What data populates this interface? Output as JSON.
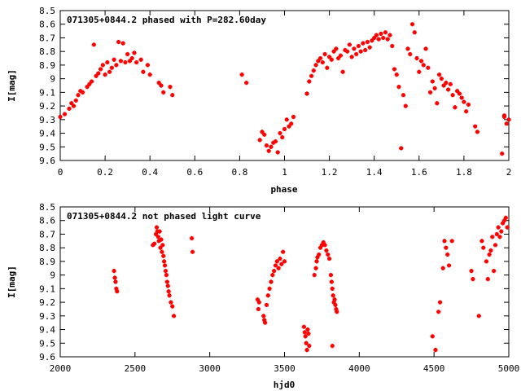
{
  "chart_data": [
    {
      "type": "scatter",
      "title": "071305+0844.2 phased with P=282.60day",
      "xlabel": "phase",
      "ylabel": "I[mag]",
      "xlim": [
        0,
        2
      ],
      "ylim": [
        9.6,
        8.5
      ],
      "y_inverted": true,
      "grid": false,
      "marker_color": "#ff0000",
      "xticks": [
        "0",
        "0.2",
        "0.4",
        "0.6",
        "0.8",
        "1",
        "1.2",
        "1.4",
        "1.6",
        "1.8",
        "2"
      ],
      "yticks": [
        "8.5",
        "8.6",
        "8.7",
        "8.8",
        "8.9",
        "9",
        "9.1",
        "9.2",
        "9.3",
        "9.4",
        "9.5",
        "9.6"
      ],
      "points": [
        [
          0.0,
          9.28
        ],
        [
          0.02,
          9.26
        ],
        [
          0.04,
          9.22
        ],
        [
          0.05,
          9.18
        ],
        [
          0.06,
          9.2
        ],
        [
          0.07,
          9.16
        ],
        [
          0.08,
          9.12
        ],
        [
          0.09,
          9.09
        ],
        [
          0.1,
          9.1
        ],
        [
          0.12,
          9.06
        ],
        [
          0.13,
          9.04
        ],
        [
          0.14,
          9.02
        ],
        [
          0.15,
          8.75
        ],
        [
          0.16,
          8.98
        ],
        [
          0.17,
          8.96
        ],
        [
          0.18,
          8.93
        ],
        [
          0.19,
          8.9
        ],
        [
          0.2,
          8.97
        ],
        [
          0.21,
          8.88
        ],
        [
          0.22,
          8.95
        ],
        [
          0.23,
          8.92
        ],
        [
          0.24,
          8.86
        ],
        [
          0.25,
          8.9
        ],
        [
          0.26,
          8.73
        ],
        [
          0.27,
          8.87
        ],
        [
          0.28,
          8.74
        ],
        [
          0.29,
          8.88
        ],
        [
          0.3,
          8.82
        ],
        [
          0.31,
          8.87
        ],
        [
          0.32,
          8.85
        ],
        [
          0.33,
          8.81
        ],
        [
          0.34,
          8.88
        ],
        [
          0.36,
          8.86
        ],
        [
          0.37,
          8.95
        ],
        [
          0.39,
          8.9
        ],
        [
          0.4,
          8.97
        ],
        [
          0.44,
          9.03
        ],
        [
          0.45,
          9.05
        ],
        [
          0.46,
          9.1
        ],
        [
          0.49,
          9.06
        ],
        [
          0.5,
          9.12
        ],
        [
          0.81,
          8.97
        ],
        [
          0.83,
          9.03
        ],
        [
          0.89,
          9.45
        ],
        [
          0.9,
          9.39
        ],
        [
          0.91,
          9.41
        ],
        [
          0.92,
          9.49
        ],
        [
          0.93,
          9.53
        ],
        [
          0.94,
          9.5
        ],
        [
          0.95,
          9.47
        ],
        [
          0.96,
          9.46
        ],
        [
          0.97,
          9.54
        ],
        [
          0.98,
          9.4
        ],
        [
          0.99,
          9.43
        ],
        [
          1.0,
          9.37
        ],
        [
          1.01,
          9.3
        ],
        [
          1.02,
          9.35
        ],
        [
          1.03,
          9.33
        ],
        [
          1.04,
          9.28
        ],
        [
          1.1,
          9.11
        ],
        [
          1.11,
          9.02
        ],
        [
          1.12,
          8.98
        ],
        [
          1.13,
          8.94
        ],
        [
          1.14,
          8.9
        ],
        [
          1.15,
          8.87
        ],
        [
          1.16,
          8.85
        ],
        [
          1.17,
          8.88
        ],
        [
          1.18,
          8.82
        ],
        [
          1.19,
          8.92
        ],
        [
          1.2,
          8.84
        ],
        [
          1.21,
          8.86
        ],
        [
          1.22,
          8.8
        ],
        [
          1.23,
          8.78
        ],
        [
          1.24,
          8.85
        ],
        [
          1.25,
          8.83
        ],
        [
          1.26,
          8.95
        ],
        [
          1.27,
          8.79
        ],
        [
          1.28,
          8.8
        ],
        [
          1.29,
          8.75
        ],
        [
          1.3,
          8.84
        ],
        [
          1.31,
          8.78
        ],
        [
          1.32,
          8.82
        ],
        [
          1.33,
          8.76
        ],
        [
          1.34,
          8.8
        ],
        [
          1.35,
          8.74
        ],
        [
          1.36,
          8.79
        ],
        [
          1.37,
          8.73
        ],
        [
          1.38,
          8.77
        ],
        [
          1.39,
          8.72
        ],
        [
          1.4,
          8.7
        ],
        [
          1.41,
          8.68
        ],
        [
          1.42,
          8.71
        ],
        [
          1.43,
          8.67
        ],
        [
          1.44,
          8.7
        ],
        [
          1.45,
          8.66
        ],
        [
          1.46,
          8.71
        ],
        [
          1.47,
          8.68
        ],
        [
          1.48,
          8.76
        ],
        [
          1.49,
          8.93
        ],
        [
          1.5,
          8.97
        ],
        [
          1.51,
          9.06
        ],
        [
          1.52,
          9.51
        ],
        [
          1.53,
          9.12
        ],
        [
          1.54,
          9.2
        ],
        [
          1.55,
          8.78
        ],
        [
          1.56,
          8.82
        ],
        [
          1.57,
          8.6
        ],
        [
          1.58,
          8.66
        ],
        [
          1.59,
          8.85
        ],
        [
          1.6,
          8.95
        ],
        [
          1.61,
          8.87
        ],
        [
          1.62,
          8.9
        ],
        [
          1.63,
          8.78
        ],
        [
          1.64,
          8.92
        ],
        [
          1.65,
          9.1
        ],
        [
          1.66,
          9.02
        ],
        [
          1.67,
          9.07
        ],
        [
          1.68,
          9.18
        ],
        [
          1.69,
          8.97
        ],
        [
          1.7,
          9.0
        ],
        [
          1.71,
          9.05
        ],
        [
          1.72,
          9.03
        ],
        [
          1.73,
          9.08
        ],
        [
          1.74,
          9.04
        ],
        [
          1.75,
          9.12
        ],
        [
          1.76,
          9.21
        ],
        [
          1.77,
          9.09
        ],
        [
          1.78,
          9.11
        ],
        [
          1.79,
          9.14
        ],
        [
          1.8,
          9.17
        ],
        [
          1.81,
          9.24
        ],
        [
          1.82,
          9.19
        ],
        [
          1.85,
          9.35
        ],
        [
          1.86,
          9.39
        ],
        [
          1.98,
          9.27
        ],
        [
          1.99,
          9.33
        ],
        [
          2.0,
          9.3
        ],
        [
          1.97,
          9.55
        ],
        [
          1.98,
          9.28
        ]
      ]
    },
    {
      "type": "scatter",
      "title": "071305+0844.2 not phased light curve",
      "xlabel": "hjd0",
      "ylabel": "I[mag]",
      "xlim": [
        2000,
        5000
      ],
      "ylim": [
        9.6,
        8.5
      ],
      "y_inverted": true,
      "grid": false,
      "marker_color": "#ff0000",
      "xticks": [
        "2000",
        "2500",
        "3000",
        "3500",
        "4000",
        "4500",
        "5000"
      ],
      "yticks": [
        "8.5",
        "8.6",
        "8.7",
        "8.8",
        "8.9",
        "9",
        "9.1",
        "9.2",
        "9.3",
        "9.4",
        "9.5",
        "9.6"
      ],
      "points": [
        [
          2360,
          8.97
        ],
        [
          2365,
          9.02
        ],
        [
          2370,
          9.05
        ],
        [
          2375,
          9.1
        ],
        [
          2380,
          9.12
        ],
        [
          2620,
          8.78
        ],
        [
          2630,
          8.77
        ],
        [
          2640,
          8.7
        ],
        [
          2645,
          8.65
        ],
        [
          2650,
          8.68
        ],
        [
          2655,
          8.72
        ],
        [
          2660,
          8.75
        ],
        [
          2665,
          8.68
        ],
        [
          2670,
          8.8
        ],
        [
          2675,
          8.74
        ],
        [
          2680,
          8.83
        ],
        [
          2685,
          8.78
        ],
        [
          2690,
          8.86
        ],
        [
          2695,
          8.9
        ],
        [
          2700,
          8.93
        ],
        [
          2705,
          8.97
        ],
        [
          2710,
          9.0
        ],
        [
          2715,
          9.05
        ],
        [
          2720,
          9.08
        ],
        [
          2725,
          9.12
        ],
        [
          2730,
          9.15
        ],
        [
          2740,
          9.2
        ],
        [
          2750,
          9.23
        ],
        [
          2760,
          9.3
        ],
        [
          2880,
          8.73
        ],
        [
          2885,
          8.83
        ],
        [
          3320,
          9.18
        ],
        [
          3325,
          9.25
        ],
        [
          3330,
          9.2
        ],
        [
          3360,
          9.3
        ],
        [
          3365,
          9.33
        ],
        [
          3370,
          9.35
        ],
        [
          3380,
          9.22
        ],
        [
          3390,
          9.15
        ],
        [
          3400,
          9.1
        ],
        [
          3410,
          9.05
        ],
        [
          3420,
          9.0
        ],
        [
          3430,
          8.97
        ],
        [
          3440,
          8.93
        ],
        [
          3450,
          8.9
        ],
        [
          3460,
          8.95
        ],
        [
          3470,
          8.88
        ],
        [
          3480,
          8.92
        ],
        [
          3490,
          8.83
        ],
        [
          3500,
          8.9
        ],
        [
          3630,
          9.38
        ],
        [
          3635,
          9.42
        ],
        [
          3640,
          9.45
        ],
        [
          3645,
          9.5
        ],
        [
          3650,
          9.55
        ],
        [
          3655,
          9.4
        ],
        [
          3660,
          9.43
        ],
        [
          3665,
          9.52
        ],
        [
          3700,
          9.0
        ],
        [
          3710,
          8.95
        ],
        [
          3715,
          8.9
        ],
        [
          3720,
          8.87
        ],
        [
          3730,
          8.85
        ],
        [
          3740,
          8.8
        ],
        [
          3750,
          8.78
        ],
        [
          3760,
          8.76
        ],
        [
          3770,
          8.78
        ],
        [
          3780,
          8.82
        ],
        [
          3790,
          8.85
        ],
        [
          3800,
          8.88
        ],
        [
          3810,
          9.0
        ],
        [
          3815,
          9.05
        ],
        [
          3820,
          9.1
        ],
        [
          3825,
          9.15
        ],
        [
          3830,
          9.2
        ],
        [
          3835,
          9.18
        ],
        [
          3840,
          9.22
        ],
        [
          3845,
          9.25
        ],
        [
          3850,
          9.27
        ],
        [
          3820,
          9.52
        ],
        [
          4490,
          9.45
        ],
        [
          4510,
          9.55
        ],
        [
          4530,
          9.27
        ],
        [
          4540,
          9.2
        ],
        [
          4560,
          8.95
        ],
        [
          4570,
          8.75
        ],
        [
          4580,
          8.8
        ],
        [
          4590,
          8.85
        ],
        [
          4600,
          8.93
        ],
        [
          4620,
          8.75
        ],
        [
          4750,
          8.97
        ],
        [
          4760,
          9.03
        ],
        [
          4800,
          9.3
        ],
        [
          4820,
          8.75
        ],
        [
          4830,
          8.8
        ],
        [
          4850,
          8.9
        ],
        [
          4860,
          9.03
        ],
        [
          4870,
          8.85
        ],
        [
          4880,
          8.82
        ],
        [
          4890,
          8.72
        ],
        [
          4900,
          8.97
        ],
        [
          4910,
          8.78
        ],
        [
          4920,
          8.7
        ],
        [
          4930,
          8.65
        ],
        [
          4940,
          8.72
        ],
        [
          4950,
          8.68
        ],
        [
          4960,
          8.62
        ],
        [
          4970,
          8.6
        ],
        [
          4980,
          8.58
        ],
        [
          4990,
          8.65
        ]
      ]
    }
  ]
}
